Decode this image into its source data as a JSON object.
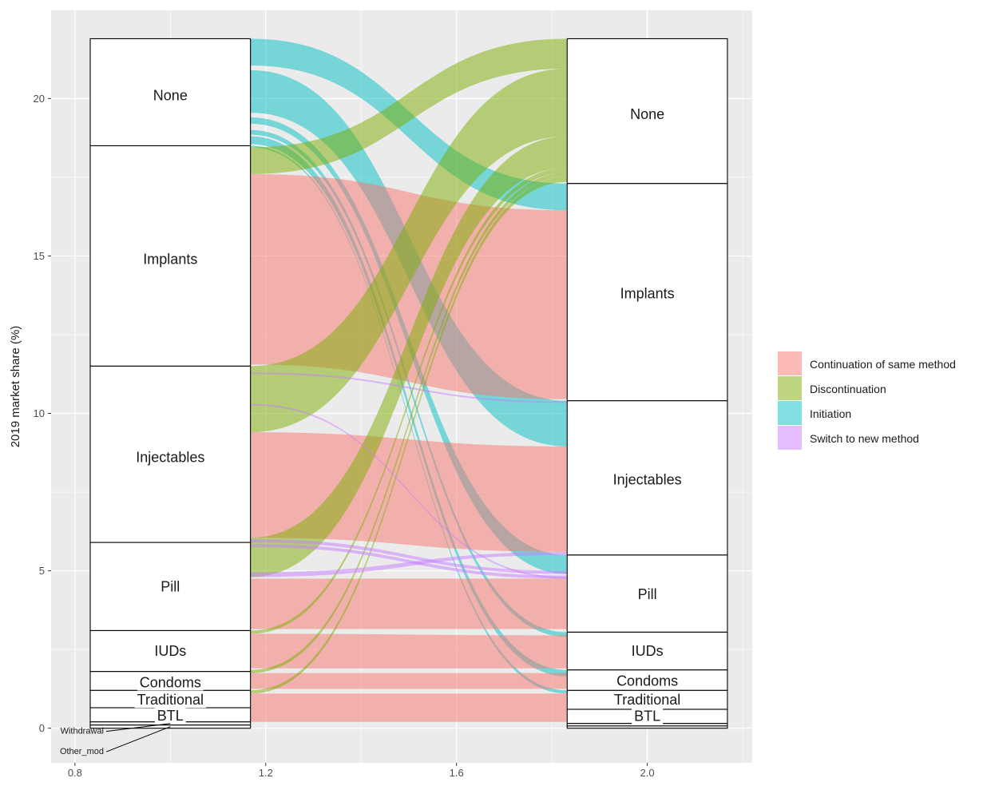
{
  "chart_data": {
    "type": "alluvial",
    "ylabel": "2019 market share (%)",
    "xlabel": "",
    "xlim": [
      0.75,
      2.22
    ],
    "ylim": [
      -1.1,
      22.8
    ],
    "x_ticks": [
      {
        "value": 0.8,
        "label": "0.8"
      },
      {
        "value": 1.2,
        "label": "1.2"
      },
      {
        "value": 1.6,
        "label": "1.6"
      },
      {
        "value": 2.0,
        "label": "2.0"
      }
    ],
    "x_minor_ticks": [
      1.0,
      1.4,
      1.8,
      2.2
    ],
    "y_ticks": [
      {
        "value": 0,
        "label": "0"
      },
      {
        "value": 5,
        "label": "5"
      },
      {
        "value": 10,
        "label": "10"
      },
      {
        "value": 15,
        "label": "15"
      },
      {
        "value": 20,
        "label": "20"
      }
    ],
    "y_minor_ticks": [
      2.5,
      7.5,
      12.5,
      17.5
    ],
    "axes": [
      {
        "x": 1.0,
        "half_width": 0.168
      },
      {
        "x": 2.0,
        "half_width": 0.168
      }
    ],
    "strata_left": [
      {
        "label": "None",
        "ymin": 18.5,
        "ymax": 21.9,
        "label_y": 20.1,
        "font_size": 18
      },
      {
        "label": "Implants",
        "ymin": 11.5,
        "ymax": 18.5,
        "label_y": 14.9,
        "font_size": 18
      },
      {
        "label": "Injectables",
        "ymin": 5.9,
        "ymax": 11.5,
        "label_y": 8.6,
        "font_size": 18
      },
      {
        "label": "Pill",
        "ymin": 3.1,
        "ymax": 5.9,
        "label_y": 4.5,
        "font_size": 18
      },
      {
        "label": "IUDs",
        "ymin": 1.8,
        "ymax": 3.1,
        "label_y": 2.45,
        "font_size": 18
      },
      {
        "label": "Condoms",
        "ymin": 1.2,
        "ymax": 1.8,
        "label_y": 1.45,
        "font_size": 18
      },
      {
        "label": "Traditional",
        "ymin": 0.65,
        "ymax": 1.2,
        "label_y": 0.9,
        "font_size": 18
      },
      {
        "label": "BTL",
        "ymin": 0.2,
        "ymax": 0.65,
        "label_y": 0.4,
        "font_size": 18
      },
      {
        "label": "Withdrawal",
        "ymin": 0.1,
        "ymax": 0.2,
        "label_y": null,
        "font_size": 11
      },
      {
        "label": "Other_mod",
        "ymin": 0.0,
        "ymax": 0.1,
        "label_y": null,
        "font_size": 11
      }
    ],
    "strata_right": [
      {
        "label": "None",
        "ymin": 17.3,
        "ymax": 21.9,
        "label_y": 19.5,
        "font_size": 18
      },
      {
        "label": "Implants",
        "ymin": 10.4,
        "ymax": 17.3,
        "label_y": 13.8,
        "font_size": 18
      },
      {
        "label": "Injectables",
        "ymin": 5.5,
        "ymax": 10.4,
        "label_y": 7.9,
        "font_size": 18
      },
      {
        "label": "Pill",
        "ymin": 3.05,
        "ymax": 5.5,
        "label_y": 4.25,
        "font_size": 18
      },
      {
        "label": "IUDs",
        "ymin": 1.85,
        "ymax": 3.05,
        "label_y": 2.45,
        "font_size": 18
      },
      {
        "label": "Condoms",
        "ymin": 1.2,
        "ymax": 1.85,
        "label_y": 1.5,
        "font_size": 18
      },
      {
        "label": "Traditional",
        "ymin": 0.6,
        "ymax": 1.2,
        "label_y": 0.9,
        "font_size": 18
      },
      {
        "label": "BTL",
        "ymin": 0.15,
        "ymax": 0.6,
        "label_y": 0.38,
        "font_size": 18
      },
      {
        "label": "",
        "ymin": 0.07,
        "ymax": 0.15,
        "label_y": null,
        "font_size": 11
      },
      {
        "label": "",
        "ymin": 0.0,
        "ymax": 0.07,
        "label_y": null,
        "font_size": 11
      }
    ],
    "callouts": [
      {
        "label": "Withdrawal",
        "from_y": 0.15,
        "label_y": -0.1
      },
      {
        "label": "Other_mod",
        "from_y": 0.05,
        "label_y": -0.75
      }
    ],
    "series": [
      {
        "name": "Continuation of same method",
        "color": "#F8766D"
      },
      {
        "name": "Discontinuation",
        "color": "#7CAE00"
      },
      {
        "name": "Initiation",
        "color": "#00BFC4"
      },
      {
        "name": "Switch to new method",
        "color": "#C77CFF"
      }
    ],
    "flow_opacity": 0.5,
    "flows": [
      {
        "type": 2,
        "y0": [
          21.9,
          21.05
        ],
        "y1": [
          17.3,
          16.45
        ]
      },
      {
        "type": 2,
        "y0": [
          20.9,
          19.55
        ],
        "y1": [
          10.4,
          8.95
        ]
      },
      {
        "type": 2,
        "y0": [
          19.4,
          19.2
        ],
        "y1": [
          5.5,
          4.9
        ]
      },
      {
        "type": 2,
        "y0": [
          19.0,
          18.85
        ],
        "y1": [
          3.05,
          2.9
        ]
      },
      {
        "type": 2,
        "y0": [
          18.8,
          18.55
        ],
        "y1": [
          1.85,
          1.65
        ]
      },
      {
        "type": 2,
        "y0": [
          18.5,
          18.45
        ],
        "y1": [
          1.2,
          1.1
        ]
      },
      {
        "type": 0,
        "y0": [
          17.6,
          11.55
        ],
        "y1": [
          16.45,
          10.45
        ]
      },
      {
        "type": 0,
        "y0": [
          9.4,
          6.05
        ],
        "y1": [
          8.95,
          5.6
        ]
      },
      {
        "type": 0,
        "y0": [
          4.75,
          3.15
        ],
        "y1": [
          4.75,
          3.15
        ]
      },
      {
        "type": 0,
        "y0": [
          3.0,
          1.9
        ],
        "y1": [
          2.95,
          1.9
        ]
      },
      {
        "type": 0,
        "y0": [
          1.75,
          1.25
        ],
        "y1": [
          1.75,
          1.25
        ]
      },
      {
        "type": 0,
        "y0": [
          1.1,
          0.2
        ],
        "y1": [
          1.1,
          0.2
        ]
      },
      {
        "type": 1,
        "y0": [
          18.45,
          17.6
        ],
        "y1": [
          21.9,
          20.95
        ]
      },
      {
        "type": 1,
        "y0": [
          11.5,
          9.4
        ],
        "y1": [
          20.95,
          18.8
        ]
      },
      {
        "type": 1,
        "y0": [
          6.05,
          4.8
        ],
        "y1": [
          18.8,
          17.8
        ]
      },
      {
        "type": 1,
        "y0": [
          3.1,
          3.0
        ],
        "y1": [
          17.8,
          17.65
        ]
      },
      {
        "type": 1,
        "y0": [
          1.85,
          1.75
        ],
        "y1": [
          17.65,
          17.5
        ]
      },
      {
        "type": 1,
        "y0": [
          1.2,
          1.1
        ],
        "y1": [
          17.5,
          17.35
        ]
      },
      {
        "type": 3,
        "y0": [
          6.0,
          5.9
        ],
        "y1": [
          5.0,
          4.9
        ]
      },
      {
        "type": 3,
        "y0": [
          5.85,
          5.75
        ],
        "y1": [
          4.85,
          4.75
        ]
      },
      {
        "type": 3,
        "y0": [
          4.95,
          4.8
        ],
        "y1": [
          5.6,
          5.5
        ]
      },
      {
        "type": 3,
        "y0": [
          11.3,
          11.25
        ],
        "y1": [
          10.38,
          10.33
        ]
      },
      {
        "type": 3,
        "y0": [
          10.3,
          10.25
        ],
        "y1": [
          4.8,
          4.75
        ]
      }
    ]
  },
  "legend": {
    "items": [
      {
        "label": "Continuation of same method",
        "color": "#F8766D"
      },
      {
        "label": "Discontinuation",
        "color": "#7CAE00"
      },
      {
        "label": "Initiation",
        "color": "#00BFC4"
      },
      {
        "label": "Switch to new method",
        "color": "#C77CFF"
      }
    ]
  }
}
